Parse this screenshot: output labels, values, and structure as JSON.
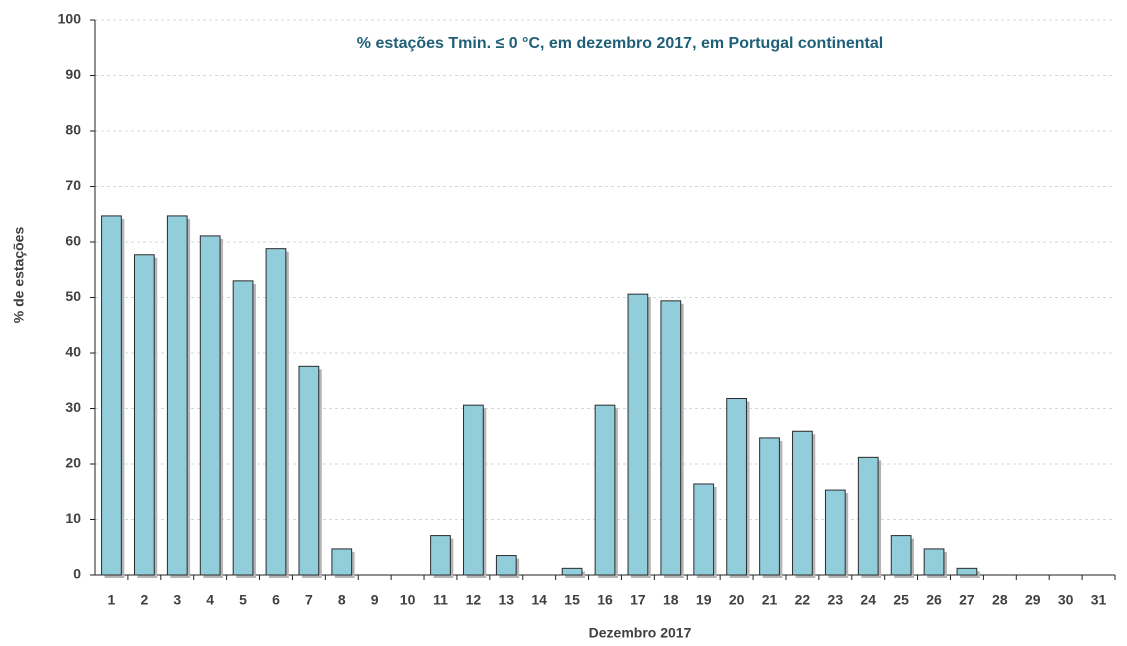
{
  "chart_data": {
    "type": "bar",
    "title": "% estações Tmin. ≤ 0 °C, em dezembro 2017, em Portugal continental",
    "x_label": "Dezembro 2017",
    "y_label": "% de estações",
    "categories": [
      "1",
      "2",
      "3",
      "4",
      "5",
      "6",
      "7",
      "8",
      "9",
      "10",
      "11",
      "12",
      "13",
      "14",
      "15",
      "16",
      "17",
      "18",
      "19",
      "20",
      "21",
      "22",
      "23",
      "24",
      "25",
      "26",
      "27",
      "28",
      "29",
      "30",
      "31"
    ],
    "values": [
      64.7,
      57.7,
      64.7,
      61.1,
      53,
      58.8,
      37.6,
      4.7,
      0,
      0,
      7.1,
      30.6,
      3.5,
      0,
      1.2,
      30.6,
      50.6,
      49.4,
      16.4,
      31.8,
      24.7,
      25.9,
      15.3,
      21.2,
      7.1,
      4.7,
      1.2,
      0,
      0,
      0,
      0
    ],
    "color": "#92cddc",
    "ylim": [
      0,
      100
    ],
    "yticks": [
      0,
      10,
      20,
      30,
      40,
      50,
      60,
      70,
      80,
      90,
      100
    ],
    "grid": true
  }
}
